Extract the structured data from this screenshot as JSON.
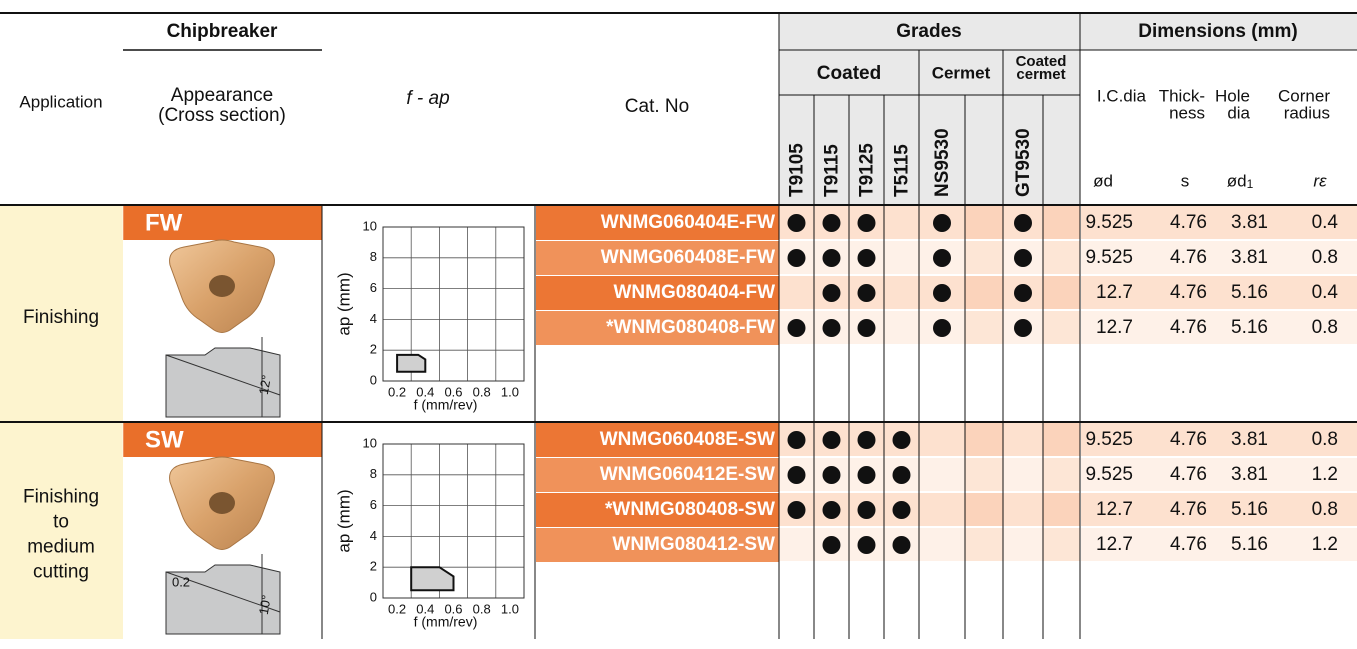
{
  "header": {
    "application": "Application",
    "chipbreaker": "Chipbreaker",
    "appearance": [
      "Appearance",
      "(Cross section)"
    ],
    "f_ap": "f - ap",
    "cat_no": "Cat. No",
    "grades": "Grades",
    "coated": "Coated",
    "cermet": "Cermet",
    "coated_cermet": [
      "Coated",
      "cermet"
    ],
    "dimensions": "Dimensions (mm)"
  },
  "grade_columns": [
    "T9105",
    "T9115",
    "T9125",
    "T5115",
    "NS9530",
    "GT9530"
  ],
  "dimension_columns": [
    {
      "name": [
        "I.C.dia"
      ],
      "symbol": "ød"
    },
    {
      "name": [
        "Thick-",
        "ness"
      ],
      "symbol": "s"
    },
    {
      "name": [
        "Hole",
        "dia"
      ],
      "symbol": "ød",
      "sub": "1"
    },
    {
      "name": [
        "Corner",
        "radius"
      ],
      "symbol": "rε"
    }
  ],
  "sections": [
    {
      "application": [
        "Finishing"
      ],
      "chipbreaker": "FW",
      "drawing_labels": [
        "12°"
      ],
      "chart": {
        "ylabel": "ap (mm)",
        "xlabel": "f (mm/rev)",
        "xlim": [
          0.1,
          1.1
        ],
        "ylim": [
          0,
          10
        ],
        "xticks": [
          0.2,
          0.4,
          0.6,
          0.8,
          {
            "value": 1,
            "label": "1.0"
          }
        ],
        "yticks": [
          0,
          2,
          4,
          6,
          8,
          10
        ],
        "region": [
          [
            0.2,
            0.6
          ],
          [
            0.2,
            1.7
          ],
          [
            0.35,
            1.7
          ],
          [
            0.4,
            1.4
          ],
          [
            0.4,
            0.6
          ]
        ]
      },
      "rows": [
        {
          "cat_no": "WNMG060404E-FW",
          "grades": [
            true,
            true,
            true,
            false,
            true,
            true
          ],
          "dimensions": [
            9.525,
            4.76,
            3.81,
            0.4
          ]
        },
        {
          "cat_no": "WNMG060408E-FW",
          "grades": [
            true,
            true,
            true,
            false,
            true,
            true
          ],
          "dimensions": [
            9.525,
            4.76,
            3.81,
            0.8
          ]
        },
        {
          "cat_no": "WNMG080404-FW",
          "grades": [
            false,
            true,
            true,
            false,
            true,
            true
          ],
          "dimensions": [
            12.7,
            4.76,
            5.16,
            0.4
          ]
        },
        {
          "cat_no": "*WNMG080408-FW",
          "grades": [
            true,
            true,
            true,
            false,
            true,
            true
          ],
          "dimensions": [
            12.7,
            4.76,
            5.16,
            0.8
          ]
        }
      ]
    },
    {
      "application": [
        "Finishing",
        "to",
        "medium",
        "cutting"
      ],
      "chipbreaker": "SW",
      "drawing_labels": [
        "0.2",
        "10°"
      ],
      "chart": {
        "ylabel": "ap (mm)",
        "xlabel": "f (mm/rev)",
        "xlim": [
          0.1,
          1.1
        ],
        "ylim": [
          0,
          10
        ],
        "xticks": [
          0.2,
          0.4,
          0.6,
          0.8,
          {
            "value": 1,
            "label": "1.0"
          }
        ],
        "yticks": [
          0,
          2,
          4,
          6,
          8,
          10
        ],
        "region": [
          [
            0.3,
            0.5
          ],
          [
            0.3,
            2
          ],
          [
            0.5,
            2
          ],
          [
            0.6,
            1.4
          ],
          [
            0.6,
            0.5
          ]
        ]
      },
      "rows": [
        {
          "cat_no": "WNMG060408E-SW",
          "grades": [
            true,
            true,
            true,
            true,
            false,
            false
          ],
          "dimensions": [
            9.525,
            4.76,
            3.81,
            0.8
          ]
        },
        {
          "cat_no": "WNMG060412E-SW",
          "grades": [
            true,
            true,
            true,
            true,
            false,
            false
          ],
          "dimensions": [
            9.525,
            4.76,
            3.81,
            1.2
          ]
        },
        {
          "cat_no": "*WNMG080408-SW",
          "grades": [
            true,
            true,
            true,
            true,
            false,
            false
          ],
          "dimensions": [
            12.7,
            4.76,
            5.16,
            0.8
          ]
        },
        {
          "cat_no": "WNMG080412-SW",
          "grades": [
            false,
            true,
            true,
            true,
            false,
            false
          ],
          "dimensions": [
            12.7,
            4.76,
            5.16,
            1.2
          ]
        }
      ]
    }
  ]
}
